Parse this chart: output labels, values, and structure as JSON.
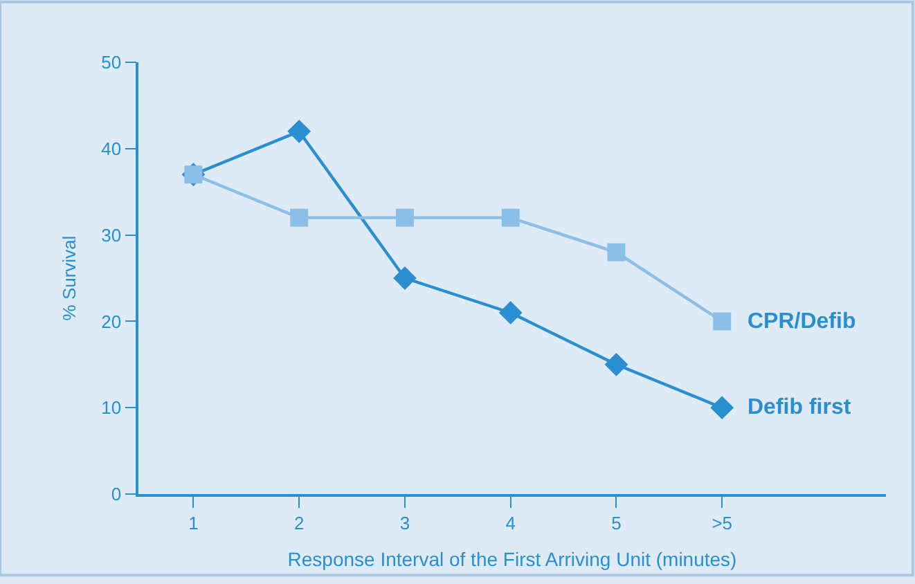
{
  "chart_data": {
    "type": "line",
    "xlabel": "Response Interval of the First Arriving Unit (minutes)",
    "ylabel": "% Survival",
    "categories": [
      "1",
      "2",
      "3",
      "4",
      "5",
      ">5"
    ],
    "ylim": [
      0,
      50
    ],
    "yticks": [
      0,
      10,
      20,
      30,
      40,
      50
    ],
    "grid": false,
    "legend": false,
    "line_style": "solid",
    "series": [
      {
        "name": "CPR/Defib",
        "color": "#8cbfe8",
        "marker": "square",
        "values": [
          37,
          32,
          32,
          32,
          28,
          20
        ]
      },
      {
        "name": "Defib first",
        "color": "#2a8fd0",
        "marker": "diamond",
        "values": [
          37,
          42,
          25,
          21,
          15,
          10
        ]
      }
    ]
  }
}
